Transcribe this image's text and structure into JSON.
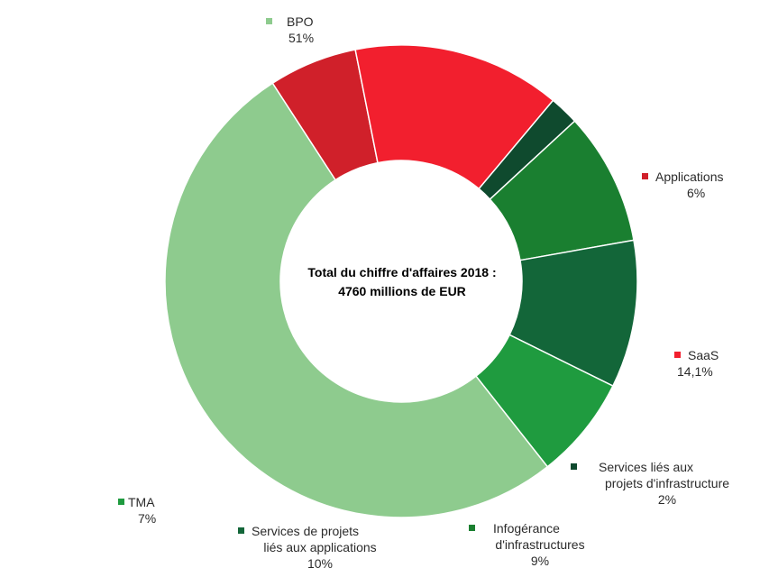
{
  "chart_data": {
    "type": "pie",
    "donut": true,
    "center_text": [
      "Total du chiffre d'affaires 2018 :",
      "4760 millions de EUR"
    ],
    "slices": [
      {
        "name": "BPO",
        "value": 51,
        "value_label": "51%",
        "color": "#8ecb8e"
      },
      {
        "name": "Applications",
        "value": 6,
        "value_label": "6%",
        "color": "#d0202a"
      },
      {
        "name": "SaaS",
        "value": 14.1,
        "value_label": "14,1%",
        "color": "#f21f2e"
      },
      {
        "name": "Services liés aux projets d'infrastructure",
        "value": 2,
        "value_label": "2%",
        "color": "#0f4a2e"
      },
      {
        "name": "Infogérance d'infrastructures",
        "value": 9,
        "value_label": "9%",
        "color": "#1a7f30"
      },
      {
        "name": "Services de projets liés aux applications",
        "value": 10,
        "value_label": "10%",
        "color": "#136639"
      },
      {
        "name": "TMA",
        "value": 7,
        "value_label": "7%",
        "color": "#1f9b3f"
      }
    ],
    "labels": {
      "bpo": {
        "line1": "BPO",
        "value": "51%"
      },
      "applications": {
        "line1": "Applications",
        "value": "6%"
      },
      "saas": {
        "line1": "SaaS",
        "value": "14,1%"
      },
      "infra_projects": {
        "line1": "Services liés aux",
        "line2": "projets d'infrastructure",
        "value": "2%"
      },
      "infogerance": {
        "line1": "Infogérance",
        "line2": "d'infrastructures",
        "value": "9%"
      },
      "app_projects": {
        "line1": "Services de projets",
        "line2": "liés aux applications",
        "value": "10%"
      },
      "tma": {
        "line1": "TMA",
        "value": "7%"
      }
    }
  }
}
